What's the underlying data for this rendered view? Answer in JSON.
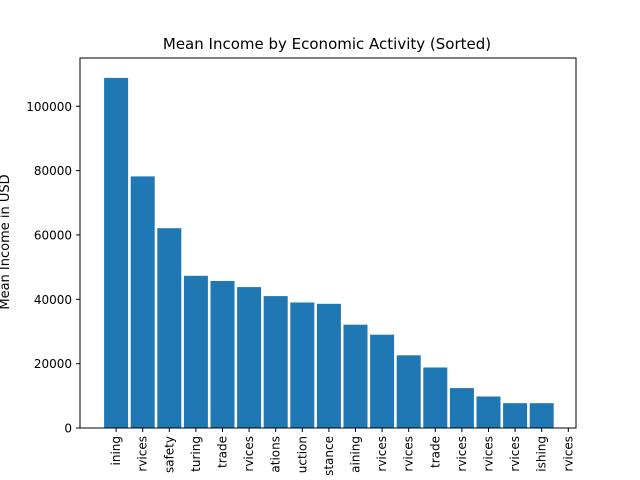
{
  "chart_data": {
    "type": "bar",
    "title": "Mean Income by Economic Activity (Sorted)",
    "xlabel": "",
    "ylabel": "Mean Income in USD",
    "ylim": [
      0,
      115000
    ],
    "yticks": [
      0,
      20000,
      40000,
      60000,
      80000,
      100000
    ],
    "ytick_labels": [
      "0",
      "20000",
      "40000",
      "60000",
      "80000",
      "100000"
    ],
    "categories": [
      "ining",
      "rvices",
      "safety",
      "turing",
      "trade",
      "rvices",
      "ations",
      "uction",
      "stance",
      "aining",
      "rvices",
      "rvices",
      "trade",
      "rvices",
      "rvices",
      "rvices",
      "ishing",
      "rvices"
    ],
    "values": [
      108800,
      78200,
      62100,
      47300,
      45700,
      43800,
      41000,
      39000,
      38600,
      32100,
      29000,
      22600,
      18800,
      12400,
      9800,
      7700,
      7700,
      0
    ],
    "bar_color": "#1f77b4",
    "grid": false,
    "legend": "none"
  }
}
